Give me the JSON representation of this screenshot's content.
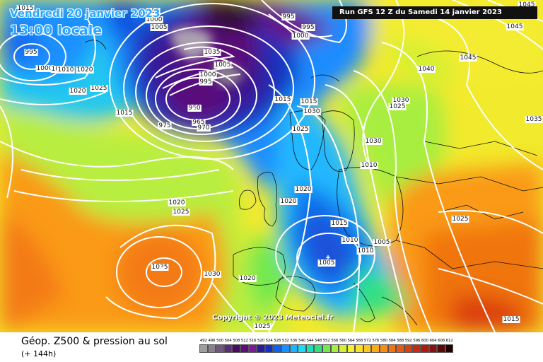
{
  "header": {
    "date": "Vendredi 20 janvier 2023",
    "local_time": "13:00 locale",
    "run_info": "Run GFS 12 Z du Samedi 14 janvier 2023"
  },
  "copyright": "Copyright © 2023 Meteociel.fr",
  "footer": {
    "title": "Géop. Z500 & pression au sol",
    "subtitle": "(+ 144h)"
  },
  "legend": {
    "values": [
      "492",
      "496",
      "500",
      "504",
      "508",
      "512",
      "516",
      "520",
      "524",
      "528",
      "532",
      "536",
      "540",
      "544",
      "548",
      "552",
      "556",
      "560",
      "564",
      "568",
      "572",
      "576",
      "580",
      "584",
      "588",
      "592",
      "596",
      "600",
      "604",
      "608",
      "612"
    ],
    "colors": [
      "#9e9e9e",
      "#8a7f8f",
      "#6e5880",
      "#5a2c78",
      "#4a0a60",
      "#5a0f7a",
      "#7a1a9a",
      "#2a1aa0",
      "#1030c8",
      "#1060ec",
      "#1890ff",
      "#20b4ff",
      "#20d8f0",
      "#18e0b8",
      "#30e080",
      "#70e850",
      "#a8ee40",
      "#d6f030",
      "#f4f030",
      "#fce028",
      "#fcc820",
      "#fcaa18",
      "#fa8c14",
      "#f47210",
      "#e85a10",
      "#dc4010",
      "#c82810",
      "#b01810",
      "#8a1010",
      "#5a0808",
      "#200404"
    ]
  },
  "pressure_labels": [
    {
      "text": "995"
    },
    {
      "text": "1000"
    },
    {
      "text": "1005"
    },
    {
      "text": "995"
    },
    {
      "text": "1000"
    },
    {
      "text": "1005"
    },
    {
      "text": "995"
    },
    {
      "text": "1015"
    },
    {
      "text": "995"
    },
    {
      "text": "1000"
    },
    {
      "text": "1010"
    },
    {
      "text": "1015"
    },
    {
      "text": "1020"
    },
    {
      "text": "1025"
    },
    {
      "text": "1015"
    },
    {
      "text": "1035"
    },
    {
      "text": "1005"
    },
    {
      "text": "1000"
    },
    {
      "text": "995"
    },
    {
      "text": "960"
    },
    {
      "text": "965"
    },
    {
      "text": "970"
    },
    {
      "text": "975"
    },
    {
      "text": "1015"
    },
    {
      "text": "1030"
    },
    {
      "text": "1025"
    },
    {
      "text": "1010"
    },
    {
      "text": "1020"
    },
    {
      "text": "1020"
    },
    {
      "text": "1015"
    },
    {
      "text": "1010"
    },
    {
      "text": "1010"
    },
    {
      "text": "1005"
    },
    {
      "text": "1005"
    },
    {
      "text": "1020"
    },
    {
      "text": "1025"
    },
    {
      "text": "1035"
    },
    {
      "text": "1030"
    },
    {
      "text": "1020"
    },
    {
      "text": "1025"
    },
    {
      "text": "1040"
    },
    {
      "text": "1045"
    },
    {
      "text": "1045"
    },
    {
      "text": "1045"
    },
    {
      "text": "1035"
    },
    {
      "text": "1030"
    },
    {
      "text": "1025"
    },
    {
      "text": "1030"
    },
    {
      "text": "1025"
    },
    {
      "text": "1015"
    },
    {
      "text": "1020"
    }
  ]
}
